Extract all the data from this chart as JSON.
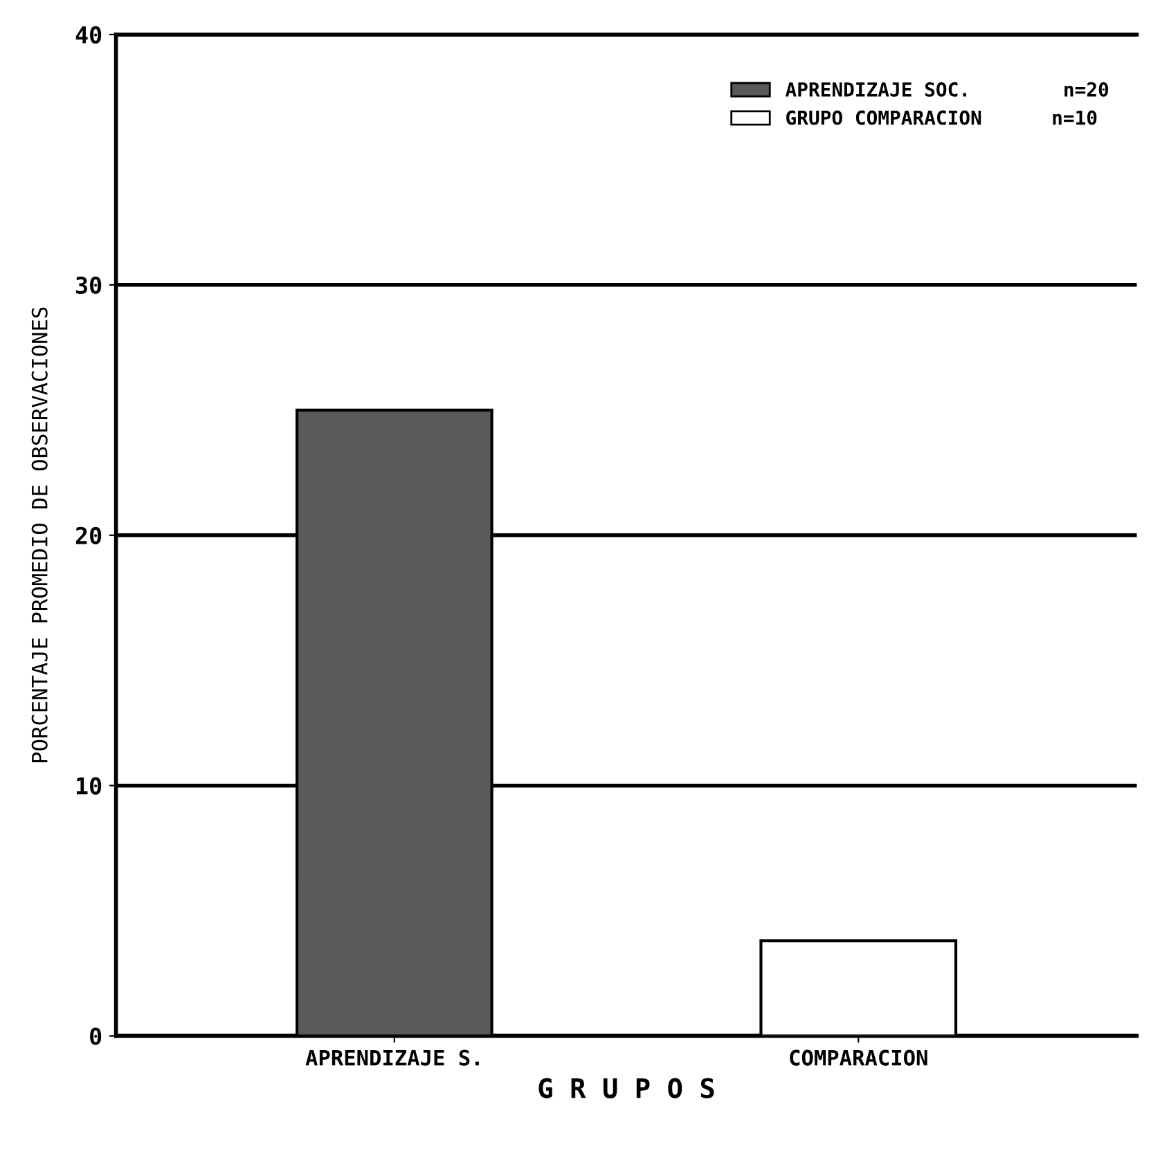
{
  "chart_data": {
    "type": "bar",
    "xlabel": "G R U P O S",
    "ylabel": "PORCENTAJE PROMEDIO DE OBSERVACIONES",
    "categories": [
      "APRENDIZAJE S.",
      "COMPARACION"
    ],
    "series": [
      {
        "name": "APRENDIZAJE SOC.        n=20",
        "color": "#5a5a5a",
        "values": [
          25,
          null
        ]
      },
      {
        "name": "GRUPO COMPARACION      n=10",
        "color": "#ffffff",
        "values": [
          null,
          3.8
        ]
      }
    ],
    "ylim": [
      0,
      40
    ],
    "yticks": [
      0,
      10,
      20,
      30,
      40
    ],
    "grid": "y",
    "legend": "top right"
  }
}
